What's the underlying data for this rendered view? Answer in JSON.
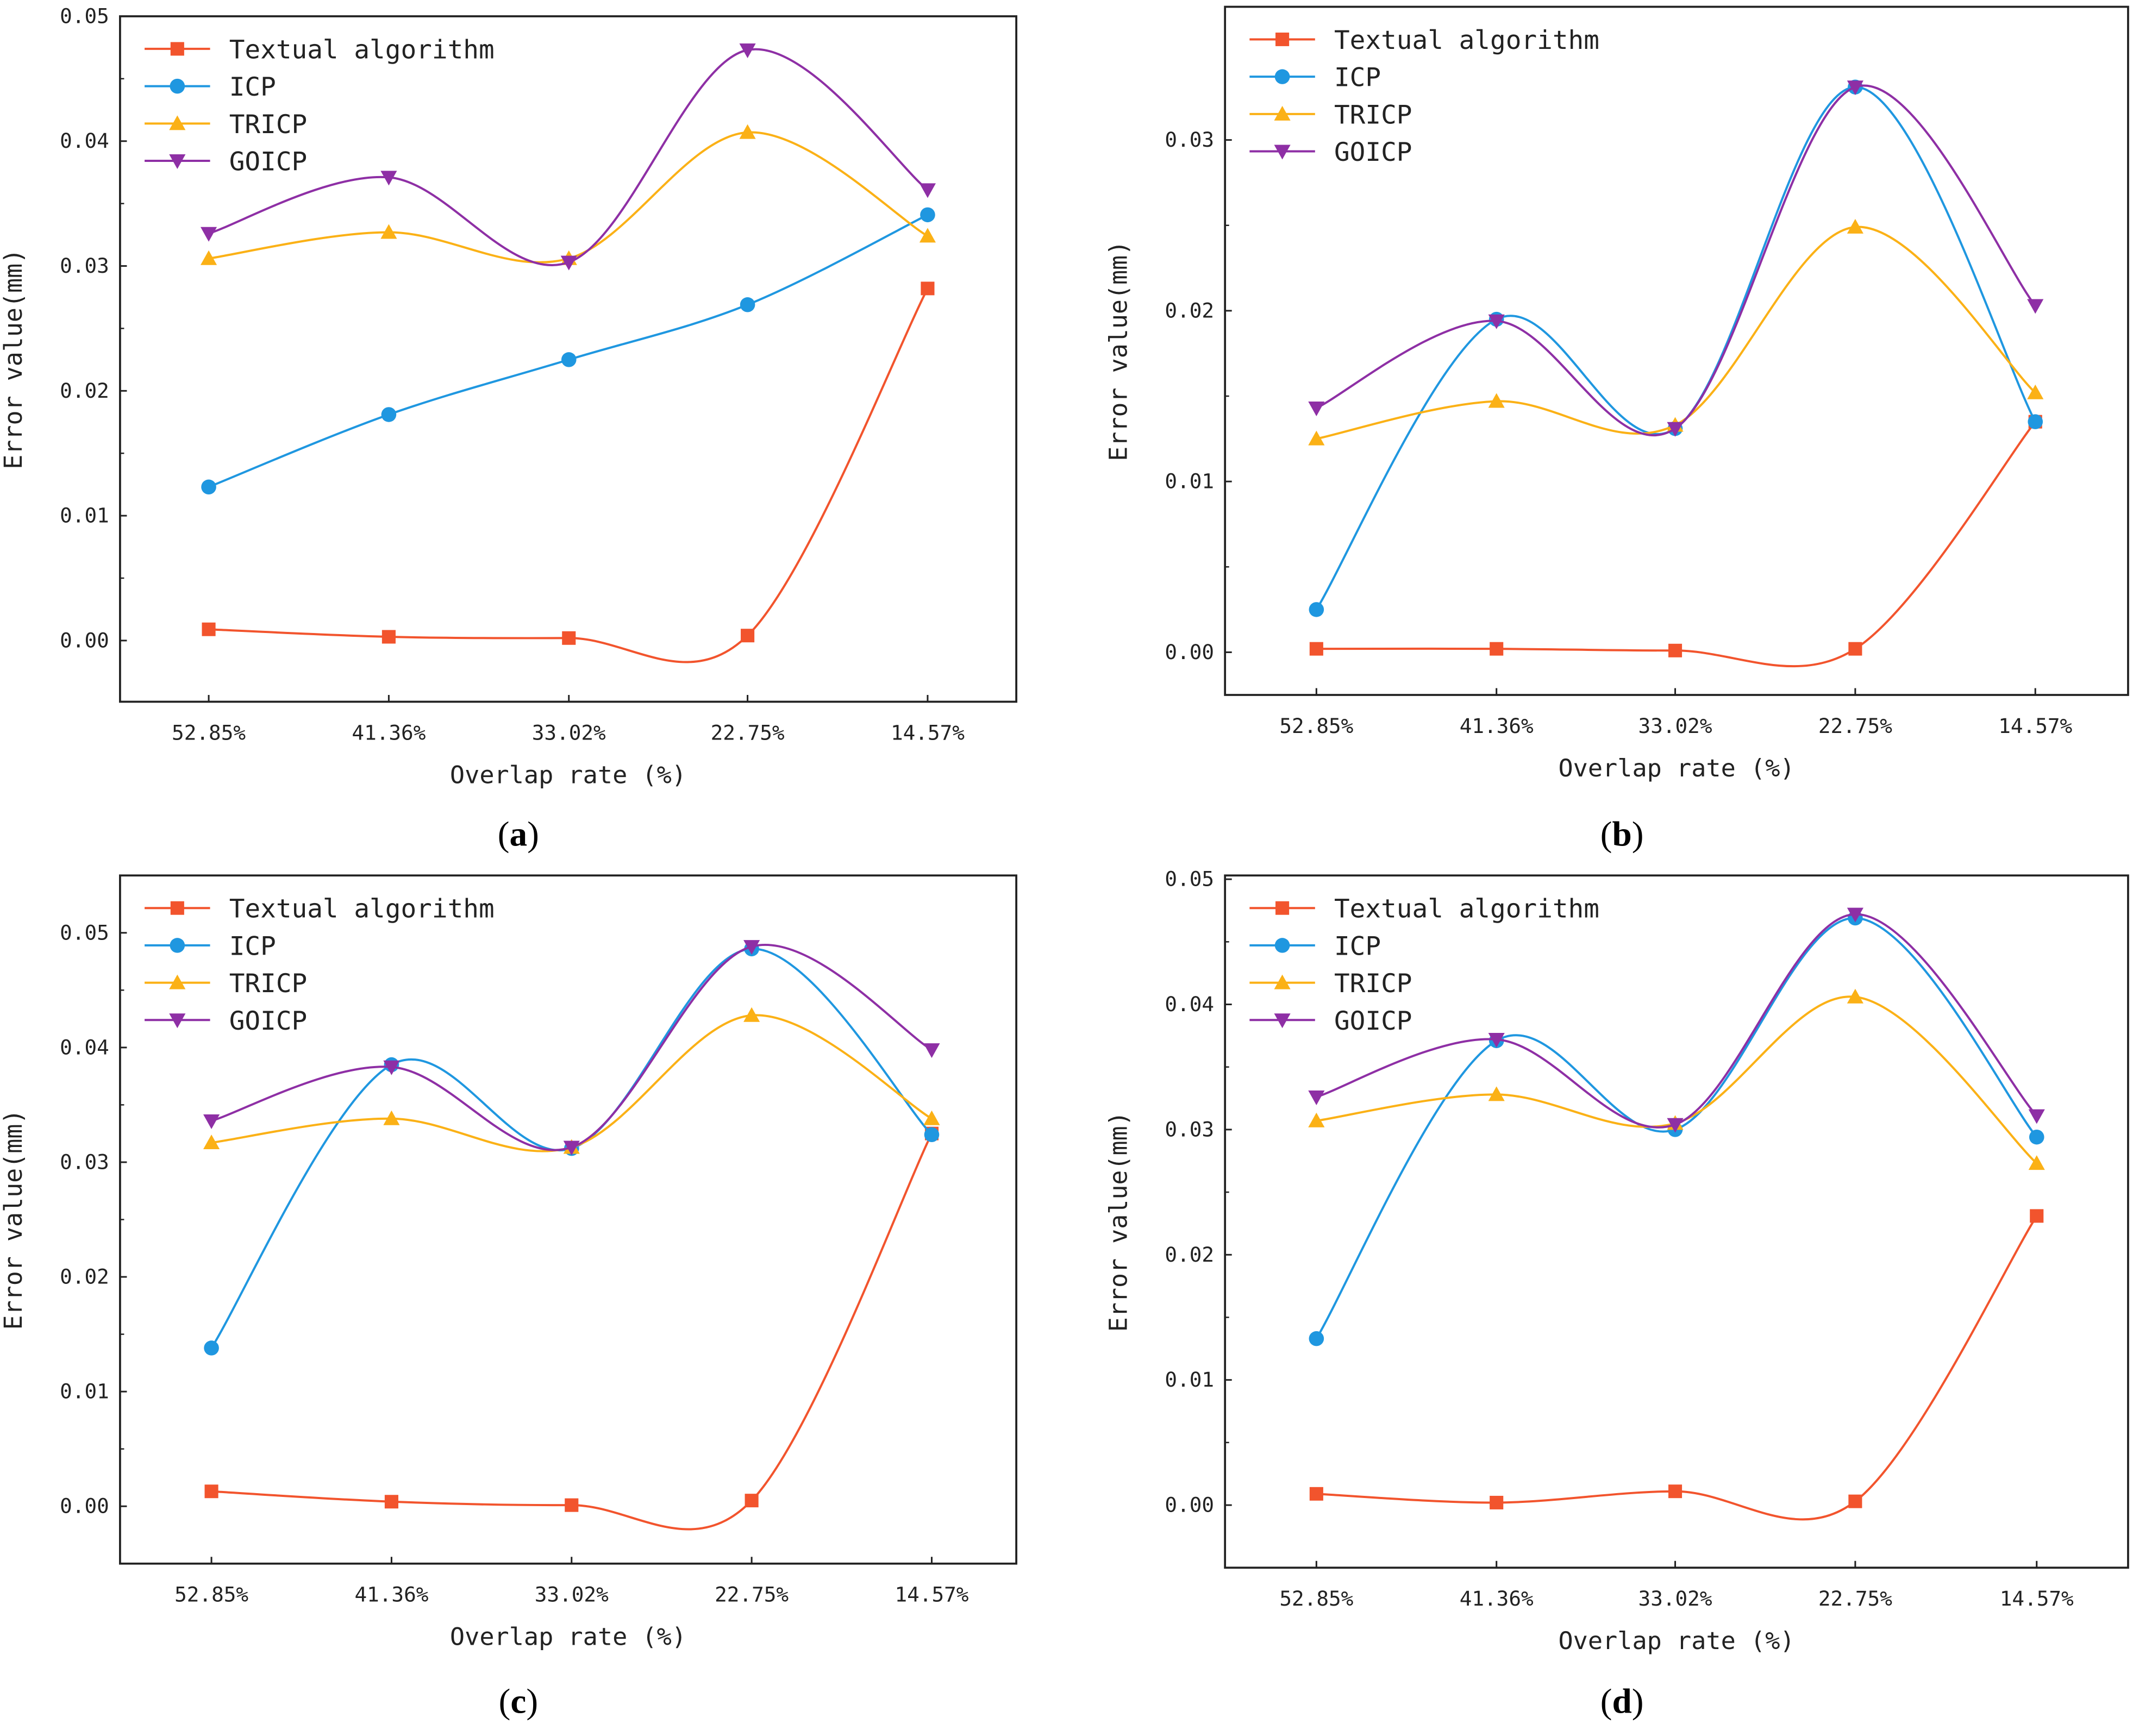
{
  "chart_data": [
    {
      "type": "line",
      "panel": "a",
      "caption_letter": "a",
      "xlabel": "Overlap rate (%)",
      "ylabel": "Error value(mm)",
      "categories": [
        "52.85%",
        "41.36%",
        "33.02%",
        "22.75%",
        "14.57%"
      ],
      "ylim": [
        -0.0049,
        0.05
      ],
      "yticks": [
        "0.00",
        "0.01",
        "0.02",
        "0.03",
        "0.04",
        "0.05"
      ],
      "legend_position": "top-left",
      "series": [
        {
          "name": "Textual algorithm",
          "color": "#f2542d",
          "marker": "square",
          "values": [
            0.0009,
            0.0003,
            0.0002,
            0.0004,
            0.0282
          ]
        },
        {
          "name": "ICP",
          "color": "#1f97e0",
          "marker": "circle",
          "values": [
            0.0123,
            0.0181,
            0.0225,
            0.0269,
            0.0341
          ]
        },
        {
          "name": "TRICP",
          "color": "#fbb116",
          "marker": "triangle-up",
          "values": [
            0.0306,
            0.0327,
            0.0306,
            0.0407,
            0.0324
          ]
        },
        {
          "name": "GOICP",
          "color": "#8e2fa5",
          "marker": "triangle-down",
          "values": [
            0.0326,
            0.0371,
            0.0303,
            0.0473,
            0.0361
          ]
        }
      ]
    },
    {
      "type": "line",
      "panel": "b",
      "caption_letter": "b",
      "xlabel": "Overlap rate (%)",
      "ylabel": "Error value(mm)",
      "categories": [
        "52.85%",
        "41.36%",
        "33.02%",
        "22.75%",
        "14.57%"
      ],
      "ylim": [
        -0.0025,
        0.0378
      ],
      "yticks": [
        "0.00",
        "0.01",
        "0.02",
        "0.03"
      ],
      "legend_position": "top-left",
      "series": [
        {
          "name": "Textual algorithm",
          "color": "#f2542d",
          "marker": "square",
          "values": [
            0.0002,
            0.0002,
            0.0001,
            0.0002,
            0.0135
          ]
        },
        {
          "name": "ICP",
          "color": "#1f97e0",
          "marker": "circle",
          "values": [
            0.0025,
            0.0195,
            0.0131,
            0.0331,
            0.0135
          ]
        },
        {
          "name": "TRICP",
          "color": "#fbb116",
          "marker": "triangle-up",
          "values": [
            0.0125,
            0.0147,
            0.0133,
            0.0249,
            0.0152
          ]
        },
        {
          "name": "GOICP",
          "color": "#8e2fa5",
          "marker": "triangle-down",
          "values": [
            0.0143,
            0.0194,
            0.0131,
            0.0331,
            0.0203
          ]
        }
      ]
    },
    {
      "type": "line",
      "panel": "c",
      "caption_letter": "c",
      "xlabel": "Overlap rate (%)",
      "ylabel": "Error value(mm)",
      "categories": [
        "52.85%",
        "41.36%",
        "33.02%",
        "22.75%",
        "14.57%"
      ],
      "ylim": [
        -0.005,
        0.055
      ],
      "yticks": [
        "0.00",
        "0.01",
        "0.02",
        "0.03",
        "0.04",
        "0.05"
      ],
      "legend_position": "top-left",
      "series": [
        {
          "name": "Textual algorithm",
          "color": "#f2542d",
          "marker": "square",
          "values": [
            0.0013,
            0.0004,
            0.0001,
            0.0005,
            0.0325
          ]
        },
        {
          "name": "ICP",
          "color": "#1f97e0",
          "marker": "circle",
          "values": [
            0.0138,
            0.0385,
            0.0312,
            0.0486,
            0.0324
          ]
        },
        {
          "name": "TRICP",
          "color": "#fbb116",
          "marker": "triangle-up",
          "values": [
            0.0317,
            0.0338,
            0.0313,
            0.0428,
            0.0338
          ]
        },
        {
          "name": "GOICP",
          "color": "#8e2fa5",
          "marker": "triangle-down",
          "values": [
            0.0336,
            0.0383,
            0.0313,
            0.0488,
            0.0398
          ]
        }
      ]
    },
    {
      "type": "line",
      "panel": "d",
      "caption_letter": "d",
      "xlabel": "Overlap rate (%)",
      "ylabel": "Error value(mm)",
      "categories": [
        "52.85%",
        "41.36%",
        "33.02%",
        "22.75%",
        "14.57%"
      ],
      "ylim": [
        -0.005,
        0.0503
      ],
      "yticks": [
        "0.00",
        "0.01",
        "0.02",
        "0.03",
        "0.04",
        "0.05"
      ],
      "legend_position": "top-left",
      "series": [
        {
          "name": "Textual algorithm",
          "color": "#f2542d",
          "marker": "square",
          "values": [
            0.0009,
            0.0002,
            0.0011,
            0.0003,
            0.0231
          ]
        },
        {
          "name": "ICP",
          "color": "#1f97e0",
          "marker": "circle",
          "values": [
            0.0133,
            0.0371,
            0.03,
            0.0469,
            0.0294
          ]
        },
        {
          "name": "TRICP",
          "color": "#fbb116",
          "marker": "triangle-up",
          "values": [
            0.0307,
            0.0328,
            0.0305,
            0.0406,
            0.0273
          ]
        },
        {
          "name": "GOICP",
          "color": "#8e2fa5",
          "marker": "triangle-down",
          "values": [
            0.0326,
            0.0372,
            0.0304,
            0.0472,
            0.0311
          ]
        }
      ]
    }
  ]
}
